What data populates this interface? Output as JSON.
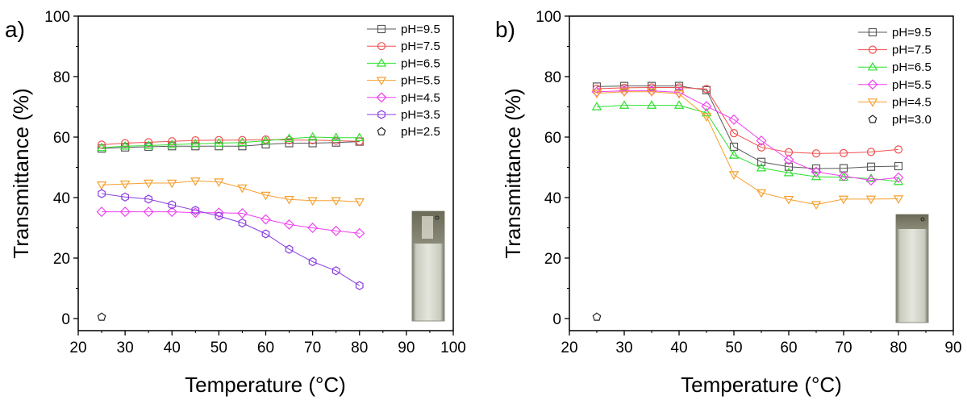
{
  "chart_data": [
    {
      "type": "line",
      "panel_label": "a)",
      "xlabel": "Temperature (°C)",
      "ylabel": "Transmittance (%)",
      "xlim": [
        20,
        100
      ],
      "ylim": [
        -4,
        100
      ],
      "xticks": [
        20,
        30,
        40,
        50,
        60,
        70,
        80,
        90,
        100
      ],
      "yticks": [
        0,
        20,
        40,
        60,
        80,
        100
      ],
      "legend_position": "top-right",
      "inset": "photo of cuvette (cloudy solution)",
      "series": [
        {
          "name": "pH=9.5",
          "color": "#5a5a5a",
          "marker": "square",
          "x": [
            25,
            30,
            35,
            40,
            45,
            50,
            55,
            60,
            65,
            70,
            75,
            80
          ],
          "y": [
            56.2,
            56.6,
            56.8,
            57.0,
            57.0,
            57.0,
            57.0,
            57.6,
            58.0,
            58.0,
            58.2,
            58.5
          ]
        },
        {
          "name": "pH=7.5",
          "color": "#f05050",
          "marker": "circle",
          "x": [
            25,
            30,
            35,
            40,
            45,
            50,
            55,
            60,
            65,
            70,
            75,
            80
          ],
          "y": [
            57.5,
            58.0,
            58.3,
            58.6,
            58.9,
            59.0,
            59.0,
            59.2,
            59.0,
            59.0,
            58.8,
            58.6
          ]
        },
        {
          "name": "pH=6.5",
          "color": "#2ee02e",
          "marker": "triangle-up",
          "x": [
            25,
            30,
            35,
            40,
            45,
            50,
            55,
            60,
            65,
            70,
            75,
            80
          ],
          "y": [
            56.5,
            57.0,
            57.2,
            57.5,
            57.8,
            58.0,
            58.2,
            58.8,
            59.5,
            60.0,
            59.8,
            59.8
          ]
        },
        {
          "name": "pH=5.5",
          "color": "#f5a030",
          "marker": "triangle-down",
          "x": [
            25,
            30,
            35,
            40,
            45,
            50,
            55,
            60,
            65,
            70,
            75,
            80
          ],
          "y": [
            44.2,
            44.5,
            44.8,
            44.8,
            45.5,
            45.2,
            43.2,
            40.8,
            39.4,
            39.0,
            39.0,
            38.6
          ]
        },
        {
          "name": "pH=4.5",
          "color": "#f040f0",
          "marker": "diamond",
          "x": [
            25,
            30,
            35,
            40,
            45,
            50,
            55,
            60,
            65,
            70,
            75,
            80
          ],
          "y": [
            35.3,
            35.3,
            35.3,
            35.3,
            35.0,
            35.0,
            34.8,
            32.8,
            31.1,
            30.0,
            29.0,
            28.2
          ]
        },
        {
          "name": "pH=3.5",
          "color": "#8a3ee0",
          "marker": "hexagon",
          "x": [
            25,
            30,
            35,
            40,
            45,
            50,
            55,
            60,
            65,
            70,
            75,
            80
          ],
          "y": [
            41.3,
            40.2,
            39.5,
            37.6,
            35.8,
            33.9,
            31.6,
            28.0,
            22.9,
            18.8,
            15.8,
            10.9
          ]
        },
        {
          "name": "pH=2.5",
          "color": "#222222",
          "marker": "pentagon",
          "line": false,
          "x": [
            25
          ],
          "y": [
            0.5
          ]
        }
      ]
    },
    {
      "type": "line",
      "panel_label": "b)",
      "xlabel": "Temperature (°C)",
      "ylabel": "Transmittance (%)",
      "xlim": [
        20,
        90
      ],
      "ylim": [
        -4,
        100
      ],
      "xticks": [
        20,
        30,
        40,
        50,
        60,
        70,
        80,
        90
      ],
      "yticks": [
        0,
        20,
        40,
        60,
        80,
        100
      ],
      "legend_position": "top-right",
      "inset": "photo of cuvette (cloudy solution)",
      "series": [
        {
          "name": "pH=9.5",
          "color": "#5a5a5a",
          "marker": "square",
          "x": [
            25,
            30,
            35,
            40,
            45,
            50,
            55,
            60,
            65,
            70,
            75,
            80
          ],
          "y": [
            76.7,
            76.9,
            76.9,
            76.9,
            75.5,
            56.8,
            51.8,
            50.2,
            49.6,
            49.7,
            50.2,
            50.4
          ]
        },
        {
          "name": "pH=7.5",
          "color": "#f05050",
          "marker": "circle",
          "x": [
            25,
            30,
            35,
            40,
            45,
            50,
            55,
            60,
            65,
            70,
            75,
            80
          ],
          "y": [
            76.0,
            76.3,
            76.4,
            76.4,
            75.9,
            61.3,
            56.6,
            55.0,
            54.6,
            54.7,
            55.1,
            55.9
          ]
        },
        {
          "name": "pH=6.5",
          "color": "#2ee02e",
          "marker": "triangle-up",
          "x": [
            25,
            30,
            35,
            40,
            45,
            50,
            55,
            60,
            65,
            70,
            75,
            80
          ],
          "y": [
            70.0,
            70.5,
            70.5,
            70.5,
            68.0,
            54.0,
            49.8,
            48.2,
            46.9,
            46.7,
            46.3,
            45.3
          ]
        },
        {
          "name": "pH=5.5",
          "color": "#f040f0",
          "marker": "diamond",
          "x": [
            25,
            30,
            35,
            40,
            45,
            50,
            55,
            60,
            65,
            70,
            75,
            80
          ],
          "y": [
            75.0,
            75.3,
            75.3,
            74.8,
            70.2,
            65.8,
            58.8,
            52.5,
            48.5,
            47.1,
            45.7,
            46.6
          ]
        },
        {
          "name": "pH=4.5",
          "color": "#f5a030",
          "marker": "triangle-down",
          "x": [
            25,
            30,
            35,
            40,
            45,
            50,
            55,
            60,
            65,
            70,
            75,
            80
          ],
          "y": [
            74.5,
            75.0,
            75.0,
            74.3,
            66.8,
            47.6,
            41.6,
            39.4,
            37.7,
            39.5,
            39.5,
            39.6
          ]
        },
        {
          "name": "pH=3.0",
          "color": "#222222",
          "marker": "pentagon",
          "line": false,
          "x": [
            25
          ],
          "y": [
            0.5
          ]
        }
      ]
    }
  ]
}
